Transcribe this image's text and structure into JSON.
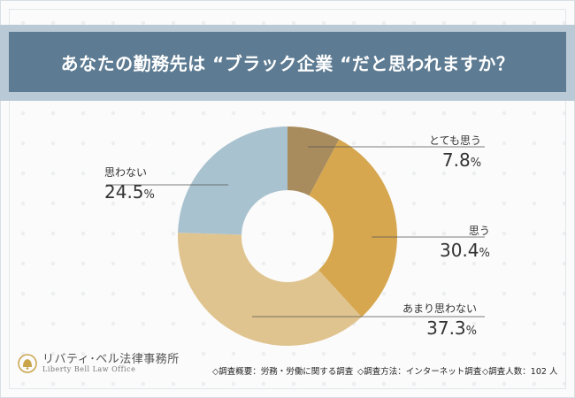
{
  "title": "あなたの勤務先は “ブラック企業 “だと思われますか？",
  "chart_data": {
    "type": "pie",
    "title": "あなたの勤務先は “ブラック企業 “だと思われますか？",
    "donut": true,
    "categories": [
      "とても思う",
      "思う",
      "あまり思わない",
      "思わない"
    ],
    "values": [
      7.8,
      30.4,
      37.3,
      24.5
    ],
    "value_labels": [
      "7.8",
      "30.4",
      "37.3",
      "24.5"
    ],
    "unit": "%",
    "colors": [
      "#a88c5e",
      "#d6a74f",
      "#e0c48f",
      "#a9c2cf"
    ]
  },
  "footer": {
    "logo_jp": "リバティ･ベル法律事務所",
    "logo_en": "Liberty Bell Law Office",
    "survey_overview": "◇調査概要：労務・労働に関する調査",
    "survey_method": "◇調査方法：インターネット調査",
    "survey_count": "◇調査人数：102 人"
  }
}
